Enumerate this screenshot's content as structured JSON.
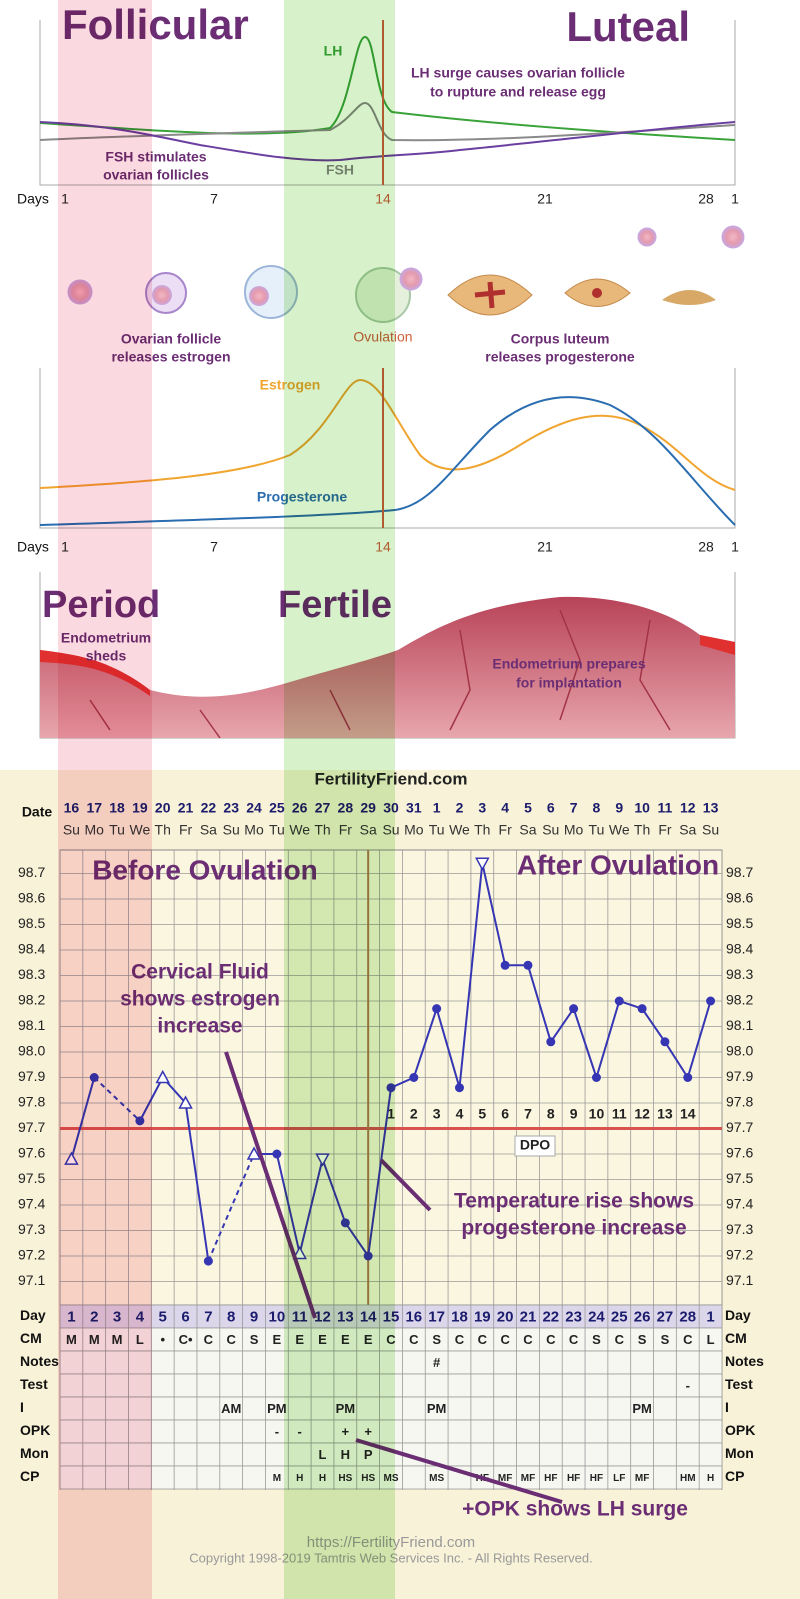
{
  "top_chart": {
    "title_left": "Follicular",
    "title_right": "Luteal",
    "lh_label": "LH",
    "fsh_label": "FSH",
    "lh_note": [
      "LH surge causes ovarian follicle",
      "to rupture and release egg"
    ],
    "fsh_note": [
      "FSH stimulates",
      "ovarian follicles"
    ],
    "days_label": "Days",
    "day_ticks": [
      1,
      7,
      14,
      21,
      28,
      1
    ]
  },
  "ovary": {
    "follicle_note": [
      "Ovarian follicle",
      "releases estrogen"
    ],
    "ovulation": "Ovulation",
    "luteum_note": [
      "Corpus luteum",
      "releases progesterone"
    ]
  },
  "hormone_chart": {
    "estrogen_label": "Estrogen",
    "progesterone_label": "Progesterone",
    "days_label": "Days",
    "day_ticks": [
      1,
      7,
      14,
      21,
      28,
      1
    ]
  },
  "uterus": {
    "period": "Period",
    "fertile": "Fertile",
    "sheds_note": [
      "Endometrium",
      "sheds"
    ],
    "prepares_note": [
      "Endometrium prepares",
      "for implantation"
    ]
  },
  "bbt_chart": {
    "site": "FertilityFriend.com",
    "date_label": "Date",
    "dates": [
      16,
      17,
      18,
      19,
      20,
      21,
      22,
      23,
      24,
      25,
      26,
      27,
      28,
      29,
      30,
      31,
      1,
      2,
      3,
      4,
      5,
      6,
      7,
      8,
      9,
      10,
      11,
      12,
      13
    ],
    "weekdays": [
      "Su",
      "Mo",
      "Tu",
      "We",
      "Th",
      "Fr",
      "Sa",
      "Su",
      "Mo",
      "Tu",
      "We",
      "Th",
      "Fr",
      "Sa",
      "Su",
      "Mo",
      "Tu",
      "We",
      "Th",
      "Fr",
      "Sa",
      "Su",
      "Mo",
      "Tu",
      "We",
      "Th",
      "Fr",
      "Sa",
      "Su"
    ],
    "before_label": "Before Ovulation",
    "after_label": "After Ovulation",
    "ylim": [
      97,
      98.8
    ],
    "yticks": [
      97.1,
      97.2,
      97.3,
      97.4,
      97.5,
      97.6,
      97.7,
      97.8,
      97.9,
      {
        "value": 98,
        "label": "98.0"
      },
      98.1,
      98.2,
      98.3,
      98.4,
      98.5,
      98.6,
      98.7
    ],
    "color": "#3636b4",
    "temperatures": [
      97.58,
      97.9,
      null,
      97.73,
      97.9,
      97.8,
      97.18,
      null,
      97.6,
      97.6,
      97.21,
      97.58,
      97.33,
      97.2,
      97.86,
      97.9,
      98.17,
      97.86,
      98.74,
      98.34,
      98.34,
      98.04,
      98.17,
      97.9,
      98.2,
      98.17,
      98.04,
      97.9,
      98.2
    ],
    "markers": [
      "triangle-up",
      "circle",
      null,
      "circle",
      "triangle-up",
      "triangle-up",
      "circle",
      null,
      "triangle-up",
      "circle",
      "triangle-up",
      "triangle-down",
      "circle",
      "circle",
      "circle",
      "circle",
      "circle",
      "circle",
      "triangle-down",
      "circle",
      "circle",
      "circle",
      "circle",
      "circle",
      "circle",
      "circle",
      "circle",
      "circle",
      "circle"
    ],
    "coverline": 97.7,
    "ovulation_day": 14,
    "dpo_label": "DPO",
    "dpo": [
      1,
      2,
      3,
      4,
      5,
      6,
      7,
      8,
      9,
      10,
      11,
      12,
      13,
      14
    ],
    "annotations": {
      "cervical_fluid": [
        "Cervical Fluid",
        "shows estrogen",
        "increase"
      ],
      "temp_rise": [
        "Temperature rise shows",
        "progesterone increase"
      ],
      "opk": "+OPK shows LH surge"
    },
    "rows": [
      {
        "label": "Day",
        "cells": [
          1,
          2,
          3,
          4,
          5,
          6,
          7,
          8,
          9,
          10,
          11,
          12,
          13,
          14,
          15,
          16,
          17,
          18,
          19,
          20,
          21,
          22,
          23,
          24,
          25,
          26,
          27,
          28,
          1
        ]
      },
      {
        "label": "CM",
        "cells": [
          "M",
          "M",
          "M",
          "L",
          "•",
          "C•",
          "C",
          "C",
          "S",
          "E",
          "E",
          "E",
          "E",
          "E",
          "C",
          "C",
          "S",
          "C",
          "C",
          "C",
          "C",
          "C",
          "C",
          "S",
          "C",
          "S",
          "S",
          "C",
          "L"
        ]
      },
      {
        "label": "Notes",
        "cells": [
          null,
          null,
          null,
          null,
          null,
          null,
          null,
          null,
          null,
          null,
          null,
          null,
          null,
          null,
          null,
          null,
          "#",
          null,
          null,
          null,
          null,
          null,
          null,
          null,
          null,
          null,
          null,
          null,
          null
        ]
      },
      {
        "label": "Test",
        "cells": [
          null,
          null,
          null,
          null,
          null,
          null,
          null,
          null,
          null,
          null,
          null,
          null,
          null,
          null,
          null,
          null,
          null,
          null,
          null,
          null,
          null,
          null,
          null,
          null,
          null,
          null,
          null,
          "-",
          null
        ]
      },
      {
        "label": "I",
        "cells": [
          null,
          null,
          null,
          null,
          null,
          null,
          null,
          "AM",
          null,
          "PM",
          null,
          null,
          "PM",
          null,
          null,
          null,
          "PM",
          null,
          null,
          null,
          null,
          null,
          null,
          null,
          null,
          "PM",
          null,
          null,
          null
        ]
      },
      {
        "label": "OPK",
        "cells": [
          null,
          null,
          null,
          null,
          null,
          null,
          null,
          null,
          null,
          "-",
          "-",
          null,
          "+",
          "+",
          null,
          null,
          null,
          null,
          null,
          null,
          null,
          null,
          null,
          null,
          null,
          null,
          null,
          null,
          null
        ]
      },
      {
        "label": "Mon",
        "cells": [
          null,
          null,
          null,
          null,
          null,
          null,
          null,
          null,
          null,
          null,
          null,
          "L",
          "H",
          "P",
          null,
          null,
          null,
          null,
          null,
          null,
          null,
          null,
          null,
          null,
          null,
          null,
          null,
          null,
          null
        ]
      },
      {
        "label": "CP",
        "cells": [
          null,
          null,
          null,
          null,
          null,
          null,
          null,
          null,
          null,
          "M",
          "H",
          "H",
          "HS",
          "HS",
          "MS",
          null,
          "MS",
          null,
          "HF",
          "MF",
          "MF",
          "HF",
          "HF",
          "HF",
          "LF",
          "MF",
          null,
          "HM",
          "H"
        ]
      }
    ]
  },
  "footer": {
    "url": "https://FertilityFriend.com",
    "copyright": "Copyright 1998-2019 Tamtris Web Services Inc. - All Rights Reserved."
  }
}
